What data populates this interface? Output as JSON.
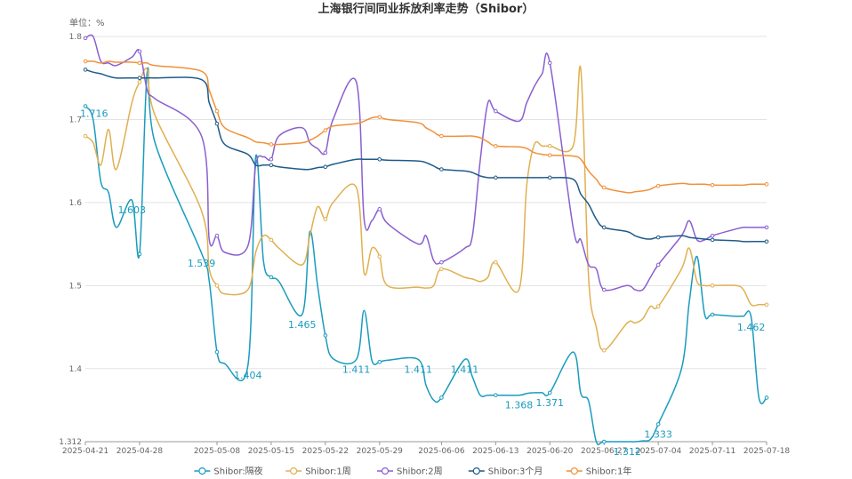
{
  "chart_data": {
    "type": "line",
    "title": "上海银行间同业拆放利率走势（Shibor）",
    "unit_label": "单位：%",
    "ylim": [
      1.312,
      1.8
    ],
    "yticks": [
      "1.312",
      "1.4",
      "1.5",
      "1.6",
      "1.7",
      "1.8"
    ],
    "xticks": [
      "2025-04-21",
      "2025-04-28",
      "2025-05-08",
      "2025-05-15",
      "2025-05-22",
      "2025-05-29",
      "2025-06-06",
      "2025-06-13",
      "2025-06-20",
      "2025-06-27",
      "2025-07-04",
      "2025-07-11",
      "2025-07-18"
    ],
    "grid": true,
    "legend_position": "bottom",
    "x": [
      "2025-04-21",
      "2025-04-22",
      "2025-04-23",
      "2025-04-24",
      "2025-04-25",
      "2025-04-27",
      "2025-04-28",
      "2025-04-29",
      "2025-04-30",
      "2025-05-06",
      "2025-05-07",
      "2025-05-08",
      "2025-05-09",
      "2025-05-12",
      "2025-05-13",
      "2025-05-14",
      "2025-05-15",
      "2025-05-16",
      "2025-05-19",
      "2025-05-20",
      "2025-05-21",
      "2025-05-22",
      "2025-05-23",
      "2025-05-26",
      "2025-05-27",
      "2025-05-28",
      "2025-05-29",
      "2025-05-30",
      "2025-06-03",
      "2025-06-04",
      "2025-06-05",
      "2025-06-06",
      "2025-06-09",
      "2025-06-10",
      "2025-06-11",
      "2025-06-12",
      "2025-06-13",
      "2025-06-16",
      "2025-06-17",
      "2025-06-18",
      "2025-06-19",
      "2025-06-20",
      "2025-06-23",
      "2025-06-24",
      "2025-06-25",
      "2025-06-26",
      "2025-06-27",
      "2025-06-30",
      "2025-07-01",
      "2025-07-02",
      "2025-07-03",
      "2025-07-04",
      "2025-07-07",
      "2025-07-08",
      "2025-07-09",
      "2025-07-10",
      "2025-07-11",
      "2025-07-14",
      "2025-07-15",
      "2025-07-16",
      "2025-07-17",
      "2025-07-18"
    ],
    "series": [
      {
        "name": "Shibor:隔夜",
        "color": "#1a9bbf",
        "values": [
          1.716,
          1.7,
          1.625,
          1.612,
          1.57,
          1.603,
          1.538,
          1.758,
          1.672,
          1.539,
          1.505,
          1.42,
          1.406,
          1.404,
          1.655,
          1.53,
          1.51,
          1.505,
          1.465,
          1.565,
          1.5,
          1.44,
          1.412,
          1.411,
          1.47,
          1.41,
          1.408,
          1.41,
          1.411,
          1.38,
          1.362,
          1.365,
          1.411,
          1.39,
          1.368,
          1.368,
          1.368,
          1.368,
          1.37,
          1.371,
          1.371,
          1.371,
          1.42,
          1.37,
          1.361,
          1.312,
          1.312,
          1.312,
          1.312,
          1.313,
          1.315,
          1.333,
          1.4,
          1.48,
          1.535,
          1.465,
          1.465,
          1.463,
          1.463,
          1.462,
          1.365,
          1.365
        ]
      },
      {
        "name": "Shibor:1周",
        "color": "#e0b050",
        "values": [
          1.68,
          1.672,
          1.645,
          1.688,
          1.64,
          1.72,
          1.745,
          1.76,
          1.705,
          1.59,
          1.52,
          1.5,
          1.49,
          1.495,
          1.54,
          1.56,
          1.555,
          1.545,
          1.525,
          1.56,
          1.595,
          1.58,
          1.6,
          1.618,
          1.515,
          1.545,
          1.535,
          1.5,
          1.498,
          1.497,
          1.5,
          1.52,
          1.51,
          1.508,
          1.505,
          1.51,
          1.528,
          1.495,
          1.62,
          1.67,
          1.668,
          1.668,
          1.668,
          1.76,
          1.51,
          1.45,
          1.422,
          1.455,
          1.455,
          1.46,
          1.475,
          1.475,
          1.52,
          1.545,
          1.505,
          1.5,
          1.5,
          1.5,
          1.495,
          1.477,
          1.477,
          1.477
        ]
      },
      {
        "name": "Shibor:2周",
        "color": "#8a5fd0",
        "values": [
          1.798,
          1.8,
          1.77,
          1.768,
          1.765,
          1.775,
          1.782,
          1.735,
          1.725,
          1.68,
          1.555,
          1.56,
          1.54,
          1.548,
          1.645,
          1.655,
          1.652,
          1.68,
          1.69,
          1.672,
          1.665,
          1.66,
          1.7,
          1.745,
          1.58,
          1.578,
          1.592,
          1.575,
          1.55,
          1.56,
          1.53,
          1.528,
          1.545,
          1.56,
          1.65,
          1.72,
          1.71,
          1.698,
          1.72,
          1.74,
          1.755,
          1.768,
          1.57,
          1.555,
          1.525,
          1.52,
          1.495,
          1.5,
          1.495,
          1.495,
          1.51,
          1.525,
          1.56,
          1.578,
          1.555,
          1.555,
          1.56,
          1.568,
          1.57,
          1.57,
          1.57,
          1.57
        ]
      },
      {
        "name": "Shibor:3个月",
        "color": "#1f5b8a",
        "values": [
          1.76,
          1.757,
          1.755,
          1.752,
          1.75,
          1.75,
          1.75,
          1.75,
          1.75,
          1.748,
          1.72,
          1.695,
          1.67,
          1.658,
          1.645,
          1.645,
          1.645,
          1.643,
          1.64,
          1.64,
          1.642,
          1.643,
          1.646,
          1.652,
          1.652,
          1.652,
          1.652,
          1.651,
          1.65,
          1.648,
          1.644,
          1.64,
          1.638,
          1.636,
          1.632,
          1.63,
          1.63,
          1.63,
          1.63,
          1.63,
          1.63,
          1.63,
          1.628,
          1.61,
          1.598,
          1.58,
          1.57,
          1.565,
          1.56,
          1.557,
          1.556,
          1.558,
          1.56,
          1.558,
          1.557,
          1.556,
          1.555,
          1.554,
          1.553,
          1.553,
          1.553,
          1.553
        ]
      },
      {
        "name": "Shibor:1年",
        "color": "#f0913a",
        "values": [
          1.77,
          1.77,
          1.768,
          1.77,
          1.769,
          1.769,
          1.768,
          1.768,
          1.765,
          1.758,
          1.735,
          1.71,
          1.69,
          1.678,
          1.673,
          1.672,
          1.67,
          1.67,
          1.672,
          1.675,
          1.68,
          1.687,
          1.692,
          1.695,
          1.698,
          1.702,
          1.703,
          1.7,
          1.696,
          1.69,
          1.685,
          1.68,
          1.68,
          1.68,
          1.678,
          1.673,
          1.668,
          1.667,
          1.665,
          1.66,
          1.658,
          1.657,
          1.656,
          1.652,
          1.638,
          1.628,
          1.618,
          1.612,
          1.613,
          1.614,
          1.616,
          1.62,
          1.623,
          1.622,
          1.622,
          1.622,
          1.621,
          1.621,
          1.621,
          1.622,
          1.622,
          1.622
        ]
      }
    ],
    "annotations": [
      {
        "series": 0,
        "index": 0,
        "text": "1.716",
        "pos": "left"
      },
      {
        "series": 0,
        "index": 5,
        "text": "1.603",
        "pos": "below"
      },
      {
        "series": 0,
        "index": 9,
        "text": "1.539",
        "pos": "below"
      },
      {
        "series": 0,
        "index": 13,
        "text": "1.404",
        "pos": "below"
      },
      {
        "series": 0,
        "index": 18,
        "text": "1.465",
        "pos": "below"
      },
      {
        "series": 0,
        "index": 23,
        "text": "1.411",
        "pos": "below"
      },
      {
        "series": 0,
        "index": 28,
        "text": "1.411",
        "pos": "below"
      },
      {
        "series": 0,
        "index": 32,
        "text": "1.411",
        "pos": "below"
      },
      {
        "series": 0,
        "index": 37,
        "text": "1.368",
        "pos": "below"
      },
      {
        "series": 0,
        "index": 41,
        "text": "1.371",
        "pos": "below"
      },
      {
        "series": 0,
        "index": 47,
        "text": "1.312",
        "pos": "below"
      },
      {
        "series": 0,
        "index": 51,
        "text": "1.333",
        "pos": "below"
      },
      {
        "series": 0,
        "index": 59,
        "text": "1.462",
        "pos": "below"
      }
    ]
  }
}
